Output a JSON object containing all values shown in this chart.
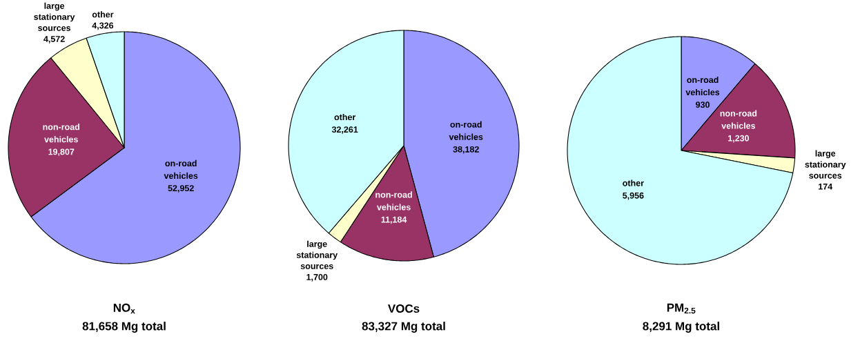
{
  "chart_data": [
    {
      "type": "pie",
      "title": "NO$_{x}$",
      "subtitle": "81,658 Mg total",
      "categories": [
        "on-road vehicles",
        "non-road vehicles",
        "large stationary sources",
        "other"
      ],
      "values": [
        52952,
        19807,
        4572,
        4326
      ],
      "value_labels": [
        "52,952",
        "19,807",
        "4,572",
        "4,326"
      ],
      "colors": [
        "#9999ff",
        "#993366",
        "#ffffcc",
        "#ccffff"
      ]
    },
    {
      "type": "pie",
      "title": "VOCs",
      "subtitle": "83,327 Mg total",
      "categories": [
        "on-road vehicles",
        "non-road vehicles",
        "large stationary sources",
        "other"
      ],
      "values": [
        38182,
        11184,
        1700,
        32261
      ],
      "value_labels": [
        "38,182",
        "11,184",
        "1,700",
        "32,261"
      ],
      "colors": [
        "#9999ff",
        "#993366",
        "#ffffcc",
        "#ccffff"
      ]
    },
    {
      "type": "pie",
      "title": "PM$_{2.5}$",
      "subtitle": "8,291 Mg total",
      "categories": [
        "on-road vehicles",
        "non-road vehicles",
        "large stationary sources",
        "other"
      ],
      "values": [
        930,
        1230,
        174,
        5956
      ],
      "value_labels": [
        "930",
        "1,230",
        "174",
        "5,956"
      ],
      "colors": [
        "#9999ff",
        "#993366",
        "#ffffcc",
        "#ccffff"
      ]
    }
  ]
}
